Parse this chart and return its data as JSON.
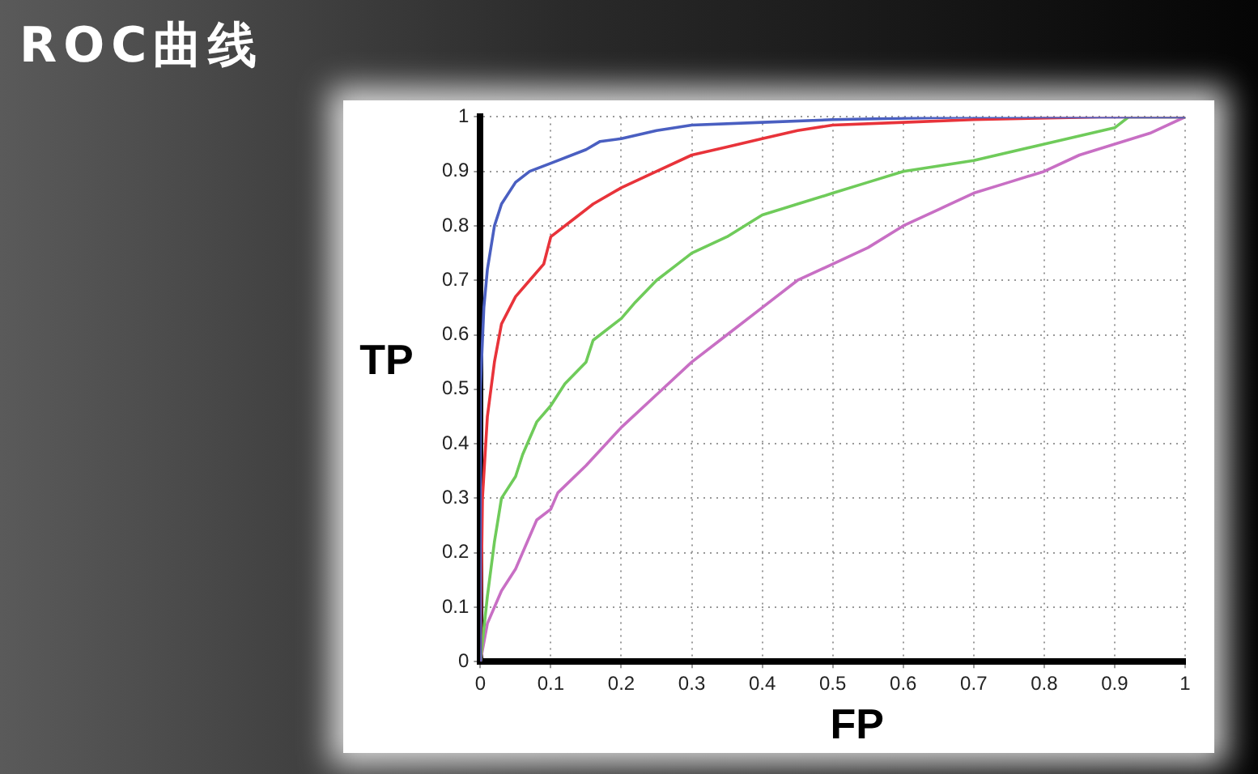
{
  "chart_data": {
    "type": "line",
    "title": "ROC曲线",
    "xlabel": "FP",
    "ylabel": "TP",
    "xlim": [
      0,
      1
    ],
    "ylim": [
      0,
      1
    ],
    "xticks": [
      0,
      0.1,
      0.2,
      0.3,
      0.4,
      0.5,
      0.6,
      0.7,
      0.8,
      0.9,
      1
    ],
    "yticks": [
      0,
      0.1,
      0.2,
      0.3,
      0.4,
      0.5,
      0.6,
      0.7,
      0.8,
      0.9,
      1
    ],
    "grid": true,
    "line_style": "solid",
    "marker": "none",
    "series": [
      {
        "color": "#4a5fc1",
        "x": [
          0,
          0,
          0.005,
          0.01,
          0.02,
          0.03,
          0.05,
          0.07,
          0.1,
          0.15,
          0.17,
          0.2,
          0.25,
          0.3,
          0.4,
          0.5,
          0.7,
          1
        ],
        "values": [
          0,
          0.5,
          0.65,
          0.72,
          0.8,
          0.84,
          0.88,
          0.9,
          0.915,
          0.94,
          0.955,
          0.96,
          0.975,
          0.985,
          0.99,
          0.995,
          1,
          1
        ]
      },
      {
        "color": "#e8333a",
        "x": [
          0,
          0.003,
          0.01,
          0.02,
          0.03,
          0.05,
          0.07,
          0.09,
          0.1,
          0.13,
          0.16,
          0.2,
          0.25,
          0.3,
          0.35,
          0.4,
          0.45,
          0.5,
          0.6,
          0.7,
          0.88,
          1
        ],
        "values": [
          0,
          0.3,
          0.45,
          0.55,
          0.62,
          0.67,
          0.7,
          0.73,
          0.78,
          0.81,
          0.84,
          0.87,
          0.9,
          0.93,
          0.945,
          0.96,
          0.975,
          0.985,
          0.99,
          0.995,
          1,
          1
        ]
      },
      {
        "color": "#6fcb5a",
        "x": [
          0,
          0.01,
          0.02,
          0.03,
          0.05,
          0.06,
          0.08,
          0.1,
          0.12,
          0.15,
          0.16,
          0.2,
          0.22,
          0.25,
          0.28,
          0.3,
          0.35,
          0.4,
          0.45,
          0.5,
          0.55,
          0.6,
          0.7,
          0.8,
          0.9,
          0.92,
          1
        ],
        "values": [
          0,
          0.12,
          0.22,
          0.3,
          0.34,
          0.38,
          0.44,
          0.47,
          0.51,
          0.55,
          0.59,
          0.63,
          0.66,
          0.7,
          0.73,
          0.75,
          0.78,
          0.82,
          0.84,
          0.86,
          0.88,
          0.9,
          0.92,
          0.95,
          0.98,
          1,
          1
        ]
      },
      {
        "color": "#c86fc4",
        "x": [
          0,
          0.01,
          0.03,
          0.05,
          0.08,
          0.1,
          0.11,
          0.15,
          0.2,
          0.25,
          0.3,
          0.35,
          0.4,
          0.45,
          0.5,
          0.55,
          0.6,
          0.65,
          0.7,
          0.75,
          0.8,
          0.85,
          0.9,
          0.95,
          1
        ],
        "values": [
          0,
          0.07,
          0.13,
          0.17,
          0.26,
          0.28,
          0.31,
          0.36,
          0.43,
          0.49,
          0.55,
          0.6,
          0.65,
          0.7,
          0.73,
          0.76,
          0.8,
          0.83,
          0.86,
          0.88,
          0.9,
          0.93,
          0.95,
          0.97,
          1
        ]
      }
    ]
  }
}
